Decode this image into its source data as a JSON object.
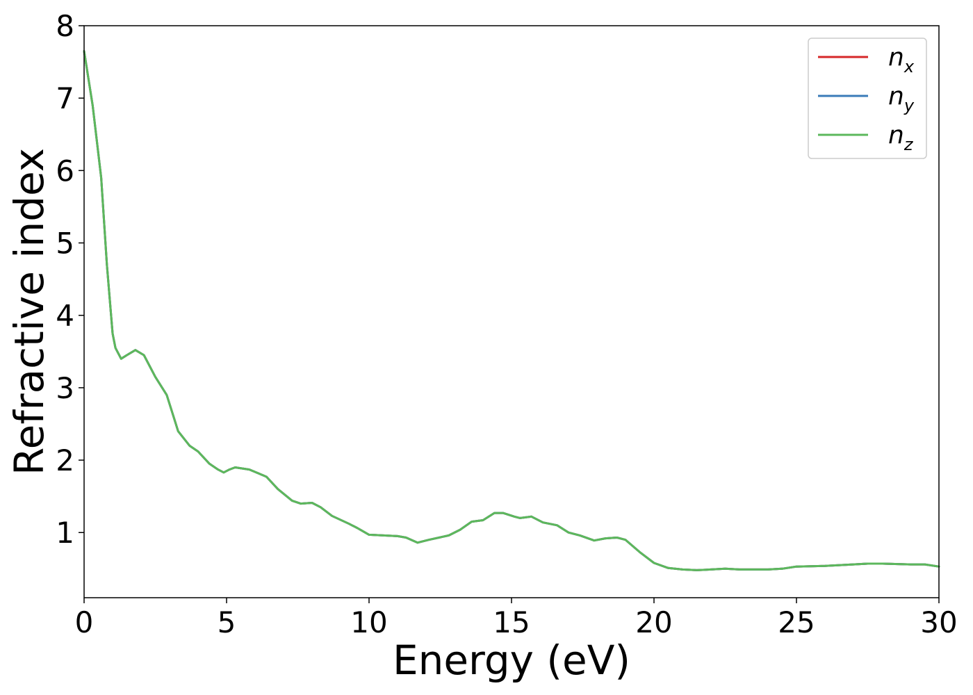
{
  "chart_data": {
    "type": "line",
    "title": "",
    "xlabel": "Energy (eV)",
    "ylabel": "Refractive index",
    "xlim": [
      0,
      30
    ],
    "ylim": [
      0.1,
      8
    ],
    "xticks": [
      "0",
      "5",
      "10",
      "15",
      "20",
      "25",
      "30"
    ],
    "yticks": [
      "1",
      "2",
      "3",
      "4",
      "5",
      "6",
      "7",
      "8"
    ],
    "grid": false,
    "legend_position": "top-right",
    "x": [
      0,
      0.3,
      0.6,
      0.8,
      1.0,
      1.1,
      1.3,
      1.5,
      1.8,
      2.1,
      2.5,
      2.9,
      3.1,
      3.3,
      3.7,
      4.0,
      4.4,
      4.7,
      4.9,
      5.1,
      5.3,
      5.8,
      6.1,
      6.4,
      6.8,
      7.3,
      7.6,
      8.0,
      8.3,
      8.7,
      9.3,
      9.6,
      10.0,
      10.5,
      11.0,
      11.3,
      11.7,
      12.1,
      12.8,
      13.2,
      13.6,
      14.0,
      14.4,
      14.7,
      15.1,
      15.3,
      15.7,
      16.1,
      16.6,
      17.0,
      17.4,
      17.9,
      18.3,
      18.7,
      19.0,
      19.5,
      20.0,
      20.5,
      21.0,
      21.5,
      22.0,
      22.5,
      23.0,
      24.0,
      24.5,
      25.0,
      26.0,
      27.0,
      27.5,
      28.0,
      29.0,
      29.5,
      30.0
    ],
    "series": [
      {
        "name": "n_x",
        "name_base": "n",
        "name_sub": "x",
        "color": "#d62728",
        "values": [
          7.65,
          6.9,
          5.9,
          4.7,
          3.75,
          3.55,
          3.4,
          3.45,
          3.52,
          3.45,
          3.15,
          2.9,
          2.65,
          2.4,
          2.2,
          2.12,
          1.95,
          1.87,
          1.83,
          1.87,
          1.9,
          1.87,
          1.82,
          1.77,
          1.6,
          1.44,
          1.4,
          1.41,
          1.35,
          1.23,
          1.12,
          1.06,
          0.97,
          0.96,
          0.95,
          0.93,
          0.86,
          0.9,
          0.96,
          1.04,
          1.15,
          1.17,
          1.27,
          1.27,
          1.22,
          1.2,
          1.22,
          1.14,
          1.1,
          1.0,
          0.96,
          0.89,
          0.92,
          0.93,
          0.9,
          0.73,
          0.58,
          0.51,
          0.49,
          0.48,
          0.49,
          0.5,
          0.49,
          0.49,
          0.5,
          0.53,
          0.54,
          0.56,
          0.57,
          0.57,
          0.56,
          0.56,
          0.53
        ]
      },
      {
        "name": "n_y",
        "name_base": "n",
        "name_sub": "y",
        "color": "#3a7bb8",
        "values": [
          7.65,
          6.9,
          5.9,
          4.7,
          3.75,
          3.55,
          3.4,
          3.45,
          3.52,
          3.45,
          3.15,
          2.9,
          2.65,
          2.4,
          2.2,
          2.12,
          1.95,
          1.87,
          1.83,
          1.87,
          1.9,
          1.87,
          1.82,
          1.77,
          1.6,
          1.44,
          1.4,
          1.41,
          1.35,
          1.23,
          1.12,
          1.06,
          0.97,
          0.96,
          0.95,
          0.93,
          0.86,
          0.9,
          0.96,
          1.04,
          1.15,
          1.17,
          1.27,
          1.27,
          1.22,
          1.2,
          1.22,
          1.14,
          1.1,
          1.0,
          0.96,
          0.89,
          0.92,
          0.93,
          0.9,
          0.73,
          0.58,
          0.51,
          0.49,
          0.48,
          0.49,
          0.5,
          0.49,
          0.49,
          0.5,
          0.53,
          0.54,
          0.56,
          0.57,
          0.57,
          0.56,
          0.56,
          0.53
        ]
      },
      {
        "name": "n_z",
        "name_base": "n",
        "name_sub": "z",
        "color": "#5cb85c",
        "values": [
          7.65,
          6.9,
          5.9,
          4.7,
          3.75,
          3.55,
          3.4,
          3.45,
          3.52,
          3.45,
          3.15,
          2.9,
          2.65,
          2.4,
          2.2,
          2.12,
          1.95,
          1.87,
          1.83,
          1.87,
          1.9,
          1.87,
          1.82,
          1.77,
          1.6,
          1.44,
          1.4,
          1.41,
          1.35,
          1.23,
          1.12,
          1.06,
          0.97,
          0.96,
          0.95,
          0.93,
          0.86,
          0.9,
          0.96,
          1.04,
          1.15,
          1.17,
          1.27,
          1.27,
          1.22,
          1.2,
          1.22,
          1.14,
          1.1,
          1.0,
          0.96,
          0.89,
          0.92,
          0.93,
          0.9,
          0.73,
          0.58,
          0.51,
          0.49,
          0.48,
          0.49,
          0.5,
          0.49,
          0.49,
          0.5,
          0.53,
          0.54,
          0.56,
          0.57,
          0.57,
          0.56,
          0.56,
          0.53
        ]
      }
    ]
  }
}
